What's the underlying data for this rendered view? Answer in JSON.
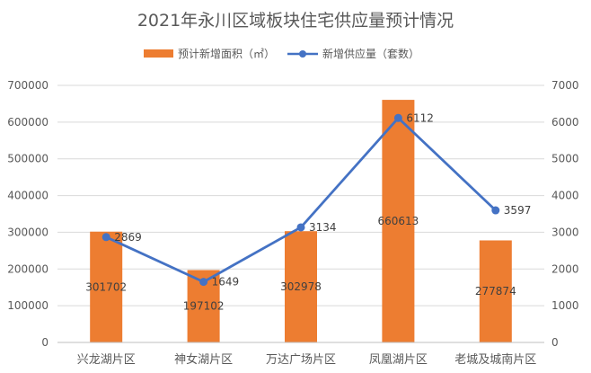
{
  "chart_data": {
    "type": "bar+line",
    "title": "2021年永川区域板块住宅供应量预计情况",
    "categories": [
      "兴龙湖片区",
      "神女湖片区",
      "万达广场片区",
      "凤凰湖片区",
      "老城及城南片区"
    ],
    "series": [
      {
        "name": "预计新增面积（㎡）",
        "type": "bar",
        "axis": "left",
        "color": "#ED7D31",
        "values": [
          301702,
          197102,
          302978,
          660613,
          277874
        ],
        "labels": [
          "301702",
          "197102",
          "302978",
          "660613",
          "277874"
        ]
      },
      {
        "name": "新增供应量（套数）",
        "type": "line",
        "axis": "right",
        "color": "#4472C4",
        "values": [
          2869,
          1649,
          3134,
          6112,
          3597
        ],
        "labels": [
          "2869",
          "1649",
          "3134",
          "6112",
          "3597"
        ]
      }
    ],
    "y_left": {
      "min": 0,
      "max": 700000,
      "ticks": [
        "0",
        "100000",
        "200000",
        "300000",
        "400000",
        "500000",
        "600000",
        "700000"
      ]
    },
    "y_right": {
      "min": 0,
      "max": 7000,
      "ticks": [
        "0",
        "1000",
        "2000",
        "3000",
        "4000",
        "5000",
        "6000",
        "7000"
      ]
    },
    "grid": true,
    "legend_position": "top"
  }
}
